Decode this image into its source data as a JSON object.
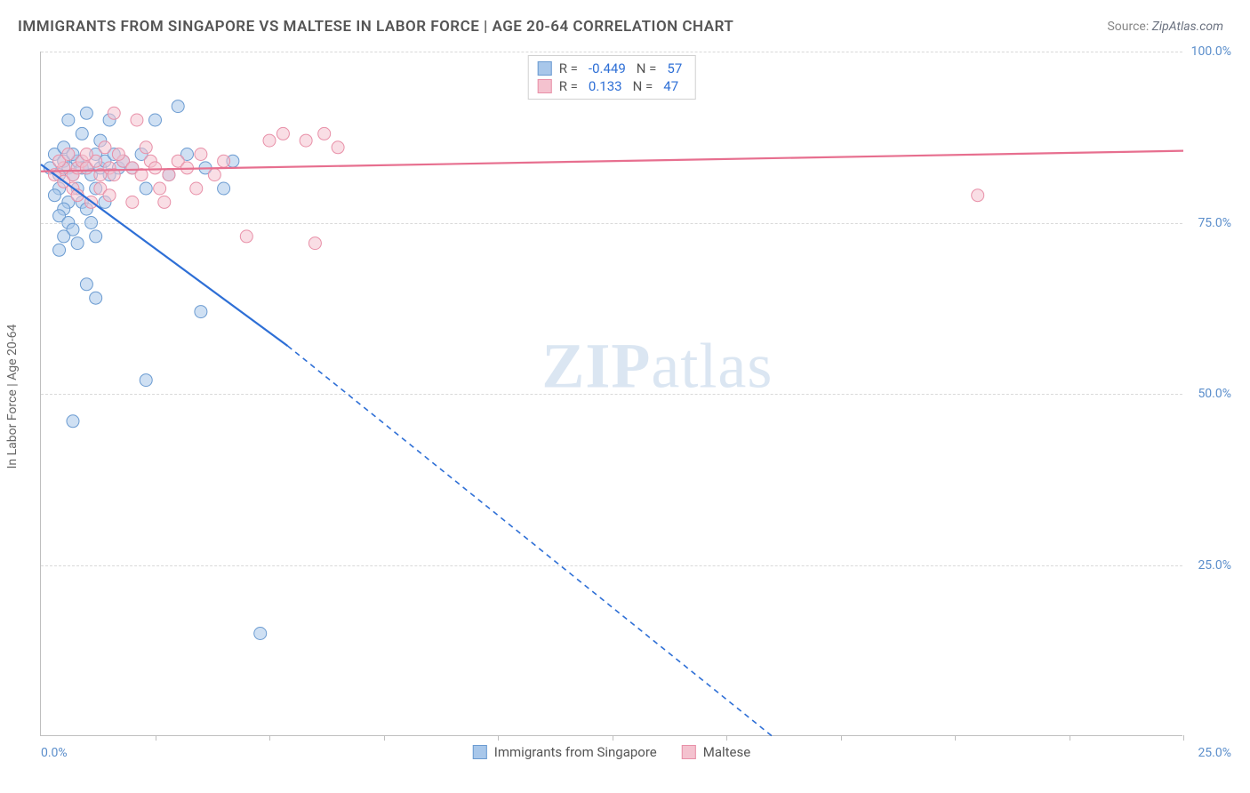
{
  "title": "IMMIGRANTS FROM SINGAPORE VS MALTESE IN LABOR FORCE | AGE 20-64 CORRELATION CHART",
  "source_label": "Source:",
  "source_value": "ZipAtlas.com",
  "y_axis_label": "In Labor Force | Age 20-64",
  "watermark": {
    "bold": "ZIP",
    "rest": "atlas"
  },
  "chart": {
    "type": "scatter",
    "xlim": [
      0,
      25
    ],
    "ylim": [
      0,
      100
    ],
    "x_ticks": [
      0,
      2.5,
      5,
      7.5,
      10,
      12.5,
      15,
      17.5,
      20,
      22.5,
      25
    ],
    "x_tick_labels_shown": {
      "0": "0.0%",
      "25": "25.0%"
    },
    "y_grid": [
      25,
      50,
      75,
      100
    ],
    "y_tick_labels": {
      "25": "25.0%",
      "50": "50.0%",
      "75": "75.0%",
      "100": "100.0%"
    },
    "background_color": "#ffffff",
    "grid_color": "#d9d9d9",
    "axis_color": "#bfbfbf",
    "marker_radius": 7,
    "marker_opacity": 0.55,
    "series": [
      {
        "id": "singapore",
        "label": "Immigrants from Singapore",
        "color_fill": "#a8c7ea",
        "color_stroke": "#6b9bd1",
        "line_color": "#2e6fd6",
        "R": "-0.449",
        "N": "57",
        "trend": {
          "x1": 0,
          "y1": 83.5,
          "x2": 5.4,
          "y2": 57,
          "extend_x2": 16,
          "extend_y2": 0
        },
        "points": [
          [
            0.2,
            83
          ],
          [
            0.3,
            85
          ],
          [
            0.4,
            82
          ],
          [
            0.5,
            84
          ],
          [
            0.4,
            80
          ],
          [
            0.6,
            83
          ],
          [
            0.5,
            86
          ],
          [
            0.7,
            82
          ],
          [
            0.3,
            79
          ],
          [
            0.8,
            84
          ],
          [
            0.6,
            78
          ],
          [
            0.5,
            77
          ],
          [
            0.9,
            83
          ],
          [
            0.7,
            85
          ],
          [
            0.4,
            76
          ],
          [
            0.8,
            80
          ],
          [
            0.6,
            75
          ],
          [
            1.0,
            83
          ],
          [
            0.9,
            78
          ],
          [
            0.7,
            74
          ],
          [
            1.1,
            82
          ],
          [
            0.5,
            73
          ],
          [
            1.2,
            85
          ],
          [
            1.0,
            77
          ],
          [
            0.8,
            72
          ],
          [
            1.3,
            83
          ],
          [
            0.4,
            71
          ],
          [
            1.4,
            84
          ],
          [
            1.1,
            75
          ],
          [
            1.5,
            82
          ],
          [
            1.2,
            80
          ],
          [
            1.6,
            85
          ],
          [
            1.0,
            91
          ],
          [
            1.3,
            87
          ],
          [
            0.6,
            90
          ],
          [
            1.7,
            83
          ],
          [
            1.4,
            78
          ],
          [
            1.8,
            84
          ],
          [
            1.2,
            73
          ],
          [
            2.0,
            83
          ],
          [
            2.2,
            85
          ],
          [
            2.3,
            80
          ],
          [
            2.8,
            82
          ],
          [
            3.0,
            92
          ],
          [
            3.2,
            85
          ],
          [
            3.5,
            62
          ],
          [
            3.6,
            83
          ],
          [
            4.0,
            80
          ],
          [
            4.2,
            84
          ],
          [
            1.0,
            66
          ],
          [
            1.2,
            64
          ],
          [
            0.7,
            46
          ],
          [
            2.3,
            52
          ],
          [
            4.8,
            15
          ],
          [
            1.5,
            90
          ],
          [
            0.9,
            88
          ],
          [
            2.5,
            90
          ]
        ]
      },
      {
        "id": "maltese",
        "label": "Maltese",
        "color_fill": "#f4c2cf",
        "color_stroke": "#e890a8",
        "line_color": "#e76f8f",
        "R": "0.133",
        "N": "47",
        "trend": {
          "x1": 0,
          "y1": 82.5,
          "x2": 25,
          "y2": 85.5
        },
        "points": [
          [
            0.3,
            82
          ],
          [
            0.5,
            83
          ],
          [
            0.4,
            84
          ],
          [
            0.7,
            82
          ],
          [
            0.6,
            85
          ],
          [
            0.8,
            83
          ],
          [
            0.5,
            81
          ],
          [
            0.9,
            84
          ],
          [
            0.7,
            80
          ],
          [
            1.0,
            83
          ],
          [
            0.8,
            79
          ],
          [
            1.2,
            84
          ],
          [
            1.0,
            85
          ],
          [
            1.3,
            82
          ],
          [
            1.1,
            78
          ],
          [
            1.5,
            83
          ],
          [
            1.4,
            86
          ],
          [
            1.6,
            82
          ],
          [
            1.3,
            80
          ],
          [
            1.8,
            84
          ],
          [
            1.5,
            79
          ],
          [
            2.0,
            83
          ],
          [
            1.7,
            85
          ],
          [
            2.2,
            82
          ],
          [
            2.0,
            78
          ],
          [
            2.4,
            84
          ],
          [
            1.6,
            91
          ],
          [
            2.1,
            90
          ],
          [
            2.5,
            83
          ],
          [
            2.3,
            86
          ],
          [
            2.8,
            82
          ],
          [
            2.6,
            80
          ],
          [
            3.0,
            84
          ],
          [
            2.7,
            78
          ],
          [
            3.2,
            83
          ],
          [
            3.5,
            85
          ],
          [
            3.4,
            80
          ],
          [
            3.8,
            82
          ],
          [
            4.0,
            84
          ],
          [
            4.5,
            73
          ],
          [
            5.0,
            87
          ],
          [
            5.3,
            88
          ],
          [
            5.8,
            87
          ],
          [
            6.2,
            88
          ],
          [
            6.5,
            86
          ],
          [
            6.0,
            72
          ],
          [
            20.5,
            79
          ]
        ]
      }
    ]
  },
  "legend_top": {
    "R_label": "R =",
    "N_label": "N ="
  }
}
